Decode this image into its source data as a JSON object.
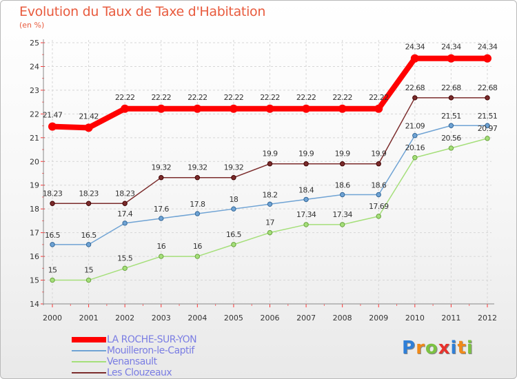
{
  "chart_data": {
    "type": "line",
    "title": "Evolution du Taux de Taxe d'Habitation",
    "subtitle": "(en %)",
    "x": [
      "2000",
      "2001",
      "2002",
      "2003",
      "2004",
      "2005",
      "2006",
      "2007",
      "2008",
      "2009",
      "2010",
      "2011",
      "2012"
    ],
    "ylim": [
      14,
      25
    ],
    "yticks": [
      14,
      15,
      16,
      17,
      18,
      19,
      20,
      21,
      22,
      23,
      24,
      25
    ],
    "grid": true,
    "legend_position": "bottom-left",
    "series": [
      {
        "name": "LA ROCHE-SUR-YON",
        "color": "#ff0000",
        "values": [
          21.47,
          21.42,
          22.22,
          22.22,
          22.22,
          22.22,
          22.22,
          22.22,
          22.22,
          22.22,
          24.34,
          24.34,
          24.34
        ],
        "labels": [
          "21.47",
          "21.42",
          "22.22",
          "22.22",
          "22.22",
          "22.22",
          "22.22",
          "22.22",
          "22.22",
          "22.22",
          "24.34",
          "24.34",
          "24.34"
        ]
      },
      {
        "name": "Mouilleron-le-Captif",
        "color": "#6fa3d4",
        "values": [
          16.5,
          16.5,
          17.4,
          17.6,
          17.8,
          18,
          18.2,
          18.4,
          18.6,
          18.6,
          21.09,
          21.51,
          21.51
        ],
        "labels": [
          "16.5",
          "16.5",
          "17.4",
          "17.6",
          "17.8",
          "18",
          "18.2",
          "18.4",
          "18.6",
          "18.6",
          "21.09",
          "21.51",
          "21.51"
        ]
      },
      {
        "name": "Venansault",
        "color": "#a5df7a",
        "values": [
          15,
          15,
          15.5,
          16,
          16,
          16.5,
          17,
          17.34,
          17.34,
          17.69,
          20.16,
          20.56,
          20.97
        ],
        "labels": [
          "15",
          "15",
          "15.5",
          "16",
          "16",
          "16.5",
          "17",
          "17.34",
          "17.34",
          "17.69",
          "20.16",
          "20.56",
          "20.97"
        ]
      },
      {
        "name": "Les Clouzeaux",
        "color": "#7b2c2c",
        "values": [
          18.23,
          18.23,
          18.23,
          19.32,
          19.32,
          19.32,
          19.9,
          19.9,
          19.9,
          19.9,
          22.68,
          22.68,
          22.68
        ],
        "labels": [
          "18.23",
          "18.23",
          "18.23",
          "19.32",
          "19.32",
          "19.32",
          "19.9",
          "19.9",
          "19.9",
          "19.9",
          "22.68",
          "22.68",
          "22.68"
        ]
      }
    ]
  },
  "brand": {
    "letters": [
      "P",
      "r",
      "o",
      "x",
      "i",
      "t",
      "i"
    ],
    "colors": [
      "#2f7fd8",
      "#f08a1a",
      "#7cc242",
      "#e8322c",
      "#2f7fd8",
      "#f08a1a",
      "#7cc242"
    ]
  }
}
